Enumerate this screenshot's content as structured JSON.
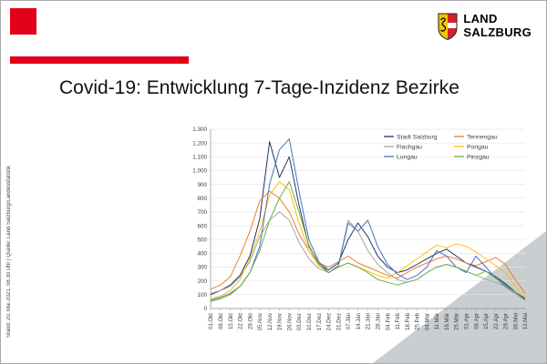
{
  "slide": {
    "title": "Covid-19: Entwicklung 7-Tage-Inzidenz Bezirke",
    "footer_vertical": "Stand: 20. Mai  2021, 08.30 Uhr  |  Quelle: Land Salzburg/Landesstatistik",
    "logo": {
      "line1": "LAND",
      "line2": "SALZBURG"
    },
    "colors": {
      "accent": "#e2001a",
      "corner_gray": "#c9ced1"
    }
  },
  "chart_data": {
    "type": "line",
    "title": "",
    "xlabel": "",
    "ylabel": "",
    "ylim": [
      0,
      1300
    ],
    "ytick_step": 100,
    "ytick_labels": [
      "0",
      "100",
      "200",
      "300",
      "400",
      "500",
      "600",
      "700",
      "800",
      "900",
      "1.000",
      "1.100",
      "1.200",
      "1.300"
    ],
    "grid": true,
    "legend_position": "top-right",
    "x": [
      "01.Okt",
      "08.Okt",
      "15.Okt",
      "22.Okt",
      "29.Okt",
      "05.Nov",
      "12.Nov",
      "19.Nov",
      "26.Nov",
      "03.Dez",
      "10.Dez",
      "17.Dez",
      "24.Dez",
      "31.Dez",
      "07.Jän",
      "14.Jän",
      "21.Jän",
      "28.Jän",
      "04.Feb",
      "11.Feb",
      "18.Feb",
      "25.Feb",
      "04.Mär",
      "11.Mär",
      "18.Mär",
      "25.Mär",
      "01.Apr",
      "08.Apr",
      "15.Apr",
      "22.Apr",
      "29.Apr",
      "06.Mai",
      "13.Mai"
    ],
    "series": [
      {
        "name": "Stadt Salzburg",
        "color": "#1f3864",
        "values": [
          100,
          130,
          170,
          240,
          380,
          650,
          1210,
          950,
          1100,
          750,
          450,
          330,
          280,
          330,
          500,
          620,
          520,
          380,
          300,
          260,
          280,
          320,
          360,
          400,
          430,
          380,
          330,
          300,
          270,
          230,
          180,
          120,
          70
        ]
      },
      {
        "name": "Tennengau",
        "color": "#ed7d31",
        "values": [
          140,
          170,
          230,
          380,
          560,
          780,
          850,
          800,
          700,
          540,
          420,
          330,
          300,
          340,
          380,
          330,
          300,
          270,
          240,
          220,
          260,
          300,
          330,
          360,
          380,
          360,
          330,
          310,
          340,
          370,
          320,
          210,
          110
        ]
      },
      {
        "name": "Flachgau",
        "color": "#a6a6a6",
        "values": [
          110,
          130,
          160,
          230,
          340,
          520,
          640,
          700,
          640,
          480,
          360,
          290,
          260,
          310,
          640,
          560,
          420,
          320,
          260,
          210,
          190,
          210,
          260,
          300,
          320,
          300,
          270,
          240,
          210,
          190,
          160,
          120,
          80
        ]
      },
      {
        "name": "Pongau",
        "color": "#ffc000",
        "values": [
          70,
          90,
          130,
          210,
          360,
          560,
          820,
          920,
          860,
          620,
          420,
          310,
          260,
          300,
          330,
          300,
          270,
          240,
          220,
          260,
          310,
          360,
          410,
          460,
          440,
          470,
          450,
          410,
          360,
          310,
          260,
          160,
          90
        ]
      },
      {
        "name": "Lungau",
        "color": "#4472c4",
        "values": [
          60,
          80,
          110,
          160,
          260,
          450,
          900,
          1150,
          1230,
          850,
          500,
          340,
          260,
          310,
          620,
          560,
          640,
          450,
          320,
          250,
          210,
          240,
          300,
          420,
          380,
          300,
          260,
          380,
          300,
          220,
          160,
          110,
          60
        ]
      },
      {
        "name": "Pinzgau",
        "color": "#70ad47",
        "values": [
          50,
          70,
          100,
          160,
          260,
          420,
          640,
          800,
          920,
          700,
          460,
          320,
          260,
          300,
          330,
          300,
          260,
          210,
          190,
          170,
          190,
          210,
          260,
          300,
          320,
          300,
          270,
          240,
          270,
          220,
          170,
          110,
          60
        ]
      }
    ]
  }
}
